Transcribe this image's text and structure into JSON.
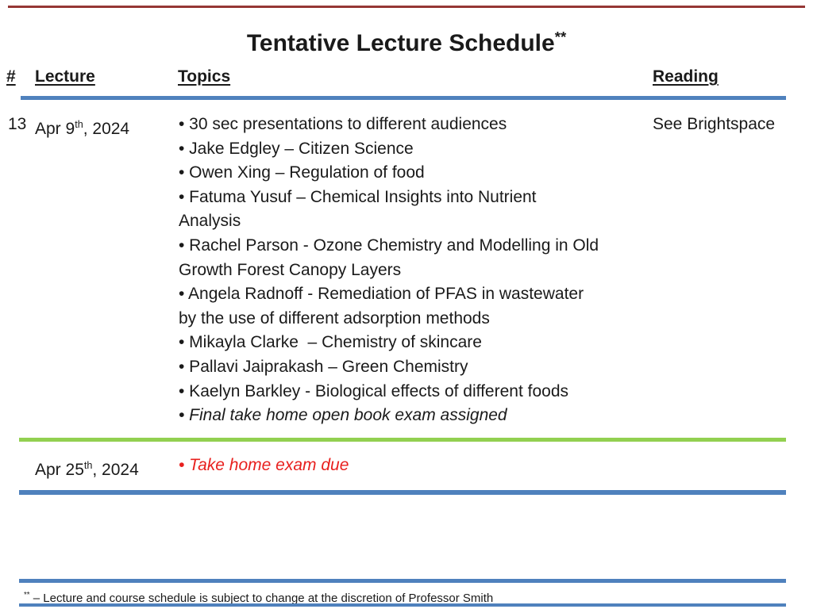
{
  "title": "Tentative Lecture Schedule",
  "title_marker": "**",
  "header": {
    "number": "#",
    "lecture": "Lecture",
    "topics": "Topics",
    "reading": "Reading"
  },
  "rows": [
    {
      "number": "13",
      "date": {
        "pre": "Apr 9",
        "sup": "th",
        "post": ", 2024"
      },
      "reading": "See Brightspace",
      "topic_lines": [
        {
          "bullet": true,
          "text": "30 sec presentations to different audiences"
        },
        {
          "bullet": true,
          "text": "Jake Edgley – Citizen Science"
        },
        {
          "bullet": true,
          "text": "Owen Xing – Regulation of food"
        },
        {
          "bullet": true,
          "text": "Fatuma Yusuf – Chemical Insights into Nutrient"
        },
        {
          "bullet": false,
          "text": "Analysis"
        },
        {
          "bullet": true,
          "text": "Rachel Parson - Ozone Chemistry and Modelling in Old"
        },
        {
          "bullet": false,
          "text": "Growth Forest Canopy Layers"
        },
        {
          "bullet": true,
          "text": "Angela Radnoff - Remediation of PFAS in wastewater"
        },
        {
          "bullet": false,
          "text": "by the use of different adsorption methods"
        },
        {
          "bullet": true,
          "text": "Mikayla Clarke  – Chemistry of skincare"
        },
        {
          "bullet": true,
          "text": "Pallavi Jaiprakash – Green Chemistry"
        },
        {
          "bullet": true,
          "text": "Kaelyn Barkley - Biological effects of different foods"
        },
        {
          "bullet": true,
          "text": "Final take home open book exam assigned",
          "style": "italic"
        }
      ]
    },
    {
      "date": {
        "pre": "Apr 25",
        "sup": "th",
        "post": ", 2024"
      },
      "topic_lines": [
        {
          "bullet": true,
          "text": "Take home exam due",
          "style": "red-italic"
        }
      ]
    }
  ],
  "footnote": {
    "marker": "**",
    "text": " – Lecture and course schedule is subject to change at the discretion of Professor Smith"
  },
  "colors": {
    "accent_blue": "#4F81BD",
    "accent_green": "#92D050",
    "alert_red": "#E8201E",
    "rule_red": "#953735",
    "text_black": "#1A1A1A"
  }
}
